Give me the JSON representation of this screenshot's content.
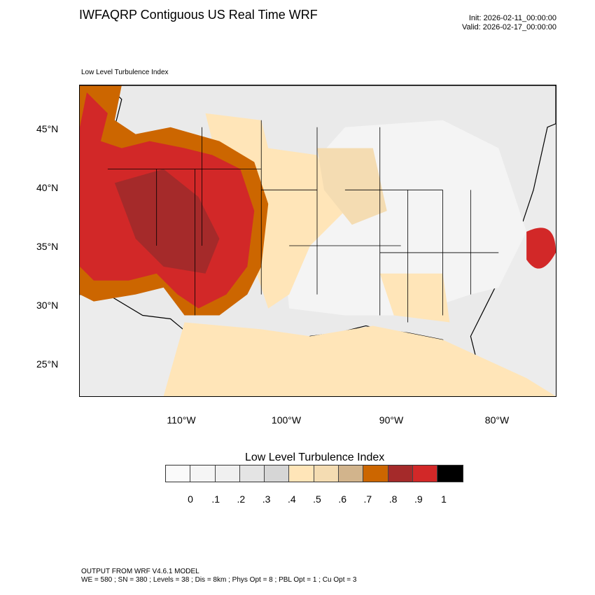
{
  "header": {
    "title": "IWFAQRP Contiguous US Real Time WRF",
    "init": "Init: 2026-02-11_00:00:00",
    "valid": "Valid: 2026-02-17_00:00:00"
  },
  "map": {
    "subtitle": "Low Level Turbulence Index",
    "lat_labels": [
      "45°N",
      "40°N",
      "35°N",
      "30°N",
      "25°N"
    ],
    "lon_labels": [
      "110°W",
      "100°W",
      "90°W",
      "80°W"
    ]
  },
  "colorbar": {
    "title": "Low Level Turbulence Index",
    "colors": [
      "#fafafa",
      "#f5f5f5",
      "#f0f0f0",
      "#e4e4e4",
      "#d6d6d6",
      "#ffe5b8",
      "#f4dcb2",
      "#d2b48c",
      "#cc6600",
      "#a52a2a",
      "#d22828",
      "#000000"
    ],
    "labels": [
      "0",
      ".1",
      ".2",
      ".3",
      ".4",
      ".5",
      ".6",
      ".7",
      ".8",
      ".9",
      "1"
    ]
  },
  "footer": {
    "line1": "OUTPUT FROM WRF V4.6.1 MODEL",
    "line2": "WE = 580 ; SN = 380 ; Levels = 38 ; Dis = 8km ; Phys Opt = 8 ; PBL Opt = 1 ; Cu Opt = 3"
  }
}
